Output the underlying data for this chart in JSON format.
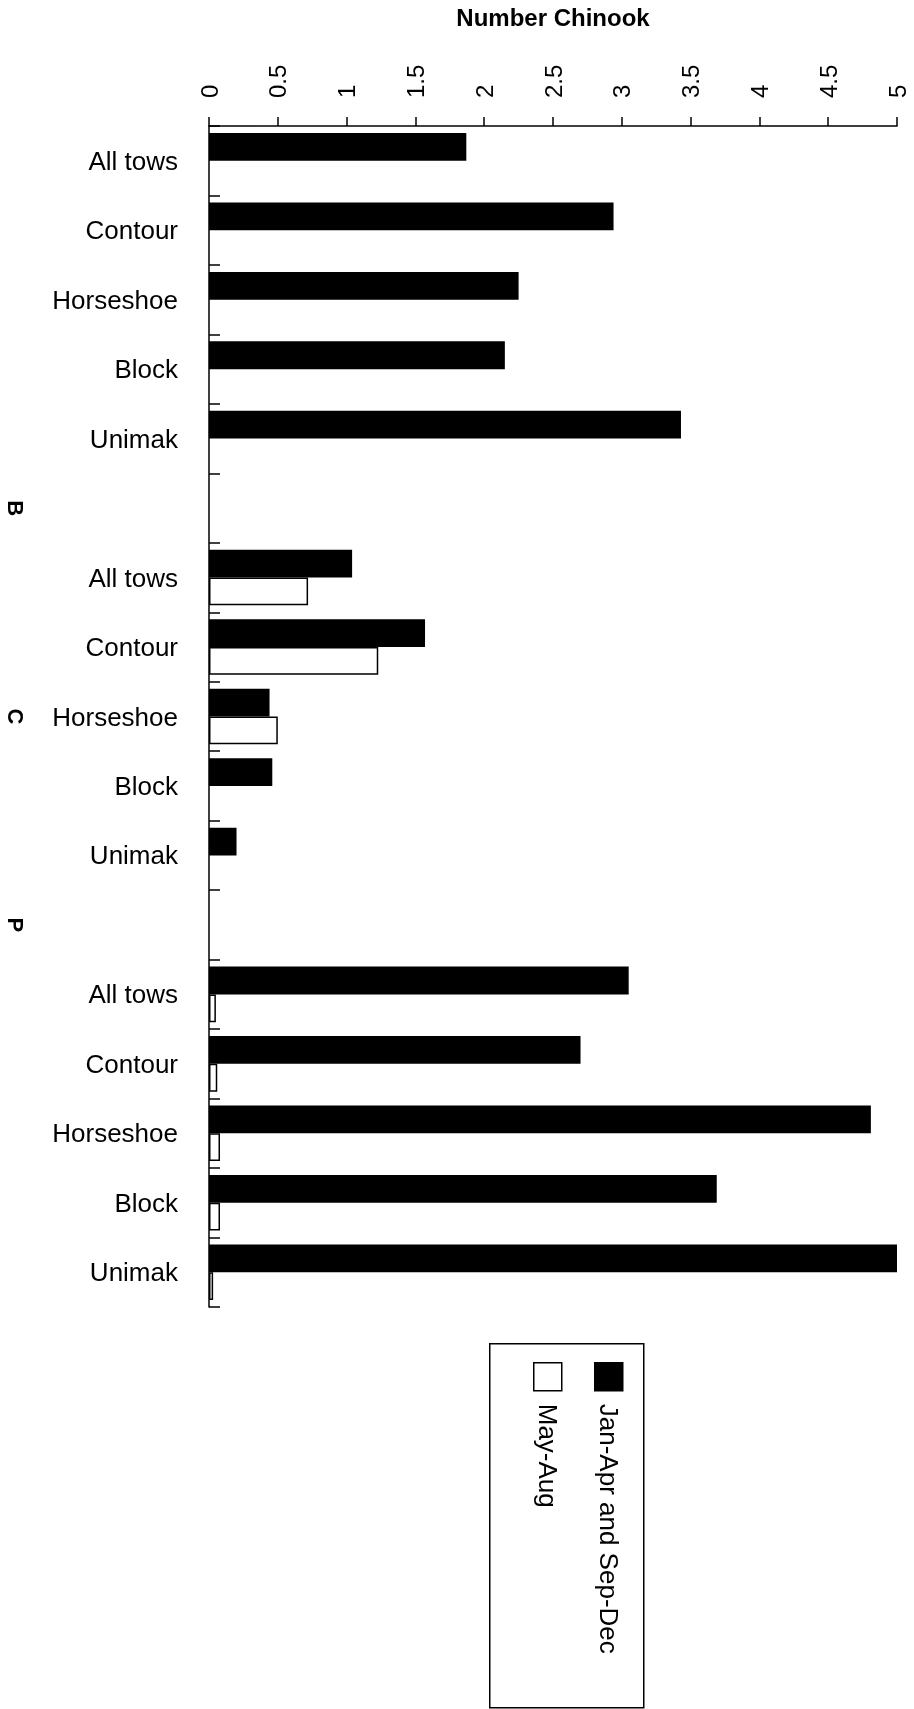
{
  "chart_data": {
    "type": "bar",
    "orientation": "horizontal",
    "xlabel": "Number Chinook",
    "categories": [
      "All tows",
      "Contour",
      "Horseshoe",
      "Block",
      "Unimak",
      null,
      "All tows",
      "Contour",
      "Horseshoe",
      "Block",
      "Unimak",
      null,
      "All tows",
      "Contour",
      "Horseshoe",
      "Block",
      "Unimak"
    ],
    "y2_categories": [
      null,
      null,
      null,
      null,
      null,
      "B",
      null,
      null,
      "C",
      null,
      null,
      "P",
      null,
      null,
      null,
      null,
      null
    ],
    "series": [
      {
        "name": "Jan-Apr and Sep-Dec",
        "color": "#000000",
        "values": [
          1.87,
          2.94,
          2.25,
          2.15,
          3.43,
          null,
          1.04,
          1.57,
          0.44,
          0.46,
          0.2,
          null,
          3.05,
          2.7,
          4.81,
          3.69,
          5.0
        ]
      },
      {
        "name": "May-Aug",
        "color": "#ffffff",
        "values": [
          null,
          null,
          null,
          null,
          null,
          null,
          0.72,
          1.23,
          0.5,
          null,
          null,
          null,
          0.05,
          0.06,
          0.08,
          0.08,
          0.03
        ]
      }
    ],
    "xlim": [
      0,
      5
    ],
    "xticks": [
      0,
      0.5,
      1,
      1.5,
      2,
      2.5,
      3,
      3.5,
      4,
      4.5,
      5
    ],
    "legend": "bottom"
  }
}
